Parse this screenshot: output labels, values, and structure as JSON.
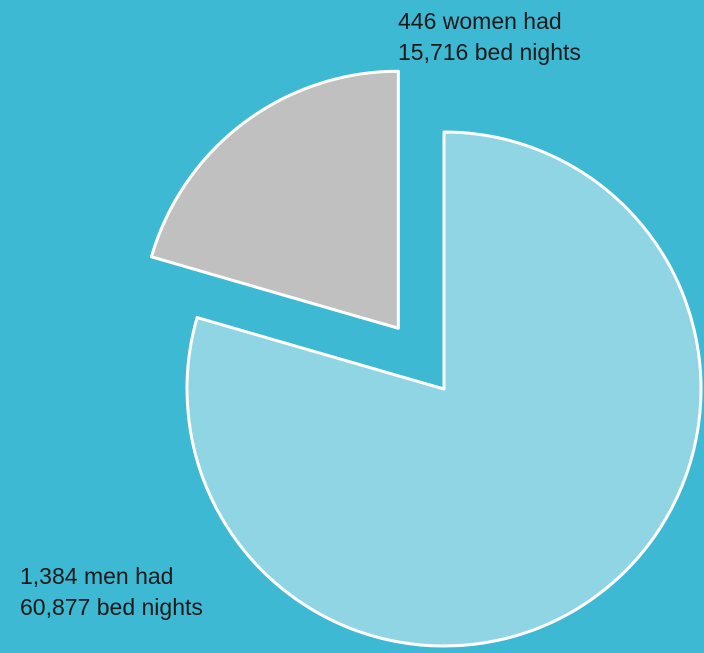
{
  "chart_data": {
    "type": "pie",
    "categories": [
      "women",
      "men"
    ],
    "values": [
      15716,
      60877
    ],
    "people": [
      446,
      1384
    ],
    "labels": [
      [
        "446 women had",
        "15,716 bed nights"
      ],
      [
        "1,384 men had",
        "60,877 bed nights"
      ]
    ],
    "exploded": true,
    "title": "",
    "legend": "none"
  },
  "colors": {
    "background": "#3db9d3",
    "women": "#c0c0c0",
    "men": "#8fd5e3",
    "stroke": "#ffffff"
  }
}
